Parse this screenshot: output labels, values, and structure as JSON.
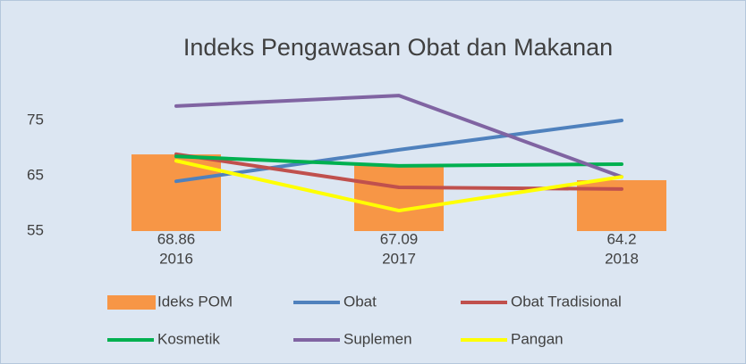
{
  "chart_data": {
    "type": "bar",
    "title": "Indeks Pengawasan Obat dan Makanan",
    "categories": [
      "2016",
      "2017",
      "2018"
    ],
    "series": [
      {
        "name": "Ideks POM",
        "type": "bar",
        "color": "#f79646",
        "values": [
          68.86,
          67.09,
          64.2
        ]
      },
      {
        "name": "Obat",
        "type": "line",
        "color": "#4f81bd",
        "values": [
          64.0,
          69.7,
          75.0
        ]
      },
      {
        "name": "Obat Tradisional",
        "type": "line",
        "color": "#c0504d",
        "values": [
          68.9,
          62.9,
          62.6
        ]
      },
      {
        "name": "Kosmetik",
        "type": "line",
        "color": "#00b050",
        "values": [
          68.5,
          66.8,
          67.1
        ]
      },
      {
        "name": "Suplemen",
        "type": "line",
        "color": "#8064a2",
        "values": [
          77.6,
          79.5,
          64.8
        ]
      },
      {
        "name": "Pangan",
        "type": "line",
        "color": "#ffff00",
        "values": [
          67.7,
          58.7,
          64.8
        ]
      }
    ],
    "ylim": [
      55,
      82
    ],
    "yticks": [
      55,
      65,
      75
    ],
    "grid": false,
    "legend": "bottom"
  }
}
